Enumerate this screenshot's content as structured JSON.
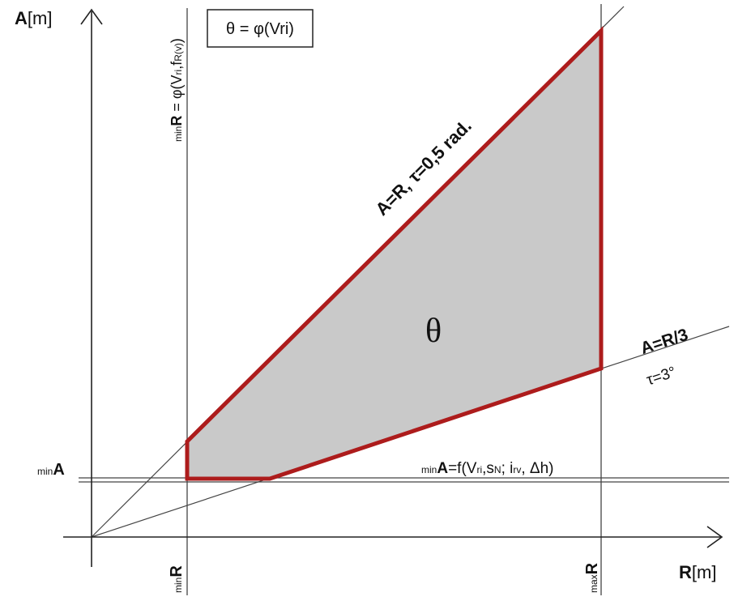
{
  "axes": {
    "y_label": [
      "A",
      "[m]"
    ],
    "x_label": [
      "R",
      "[m]"
    ]
  },
  "formula_box": "θ = φ(Vri)",
  "min_r_formula": [
    "min",
    "R",
    " = φ(V",
    "ri",
    ",f",
    "R(v)",
    ")"
  ],
  "upper_line_label": "A=R, τ=0,5 rad.",
  "region_label": "θ",
  "lower_line_label": "A=R/3",
  "lower_line_angle": "τ=3°",
  "min_a_label": [
    "min",
    "A"
  ],
  "min_a_formula": [
    "min",
    "A",
    "=f(V",
    "ri",
    ",s",
    "N",
    "; i",
    "rv",
    ", Δh)"
  ],
  "min_r_tick": [
    "min",
    "R"
  ],
  "max_r_tick": [
    "max",
    "R"
  ]
}
